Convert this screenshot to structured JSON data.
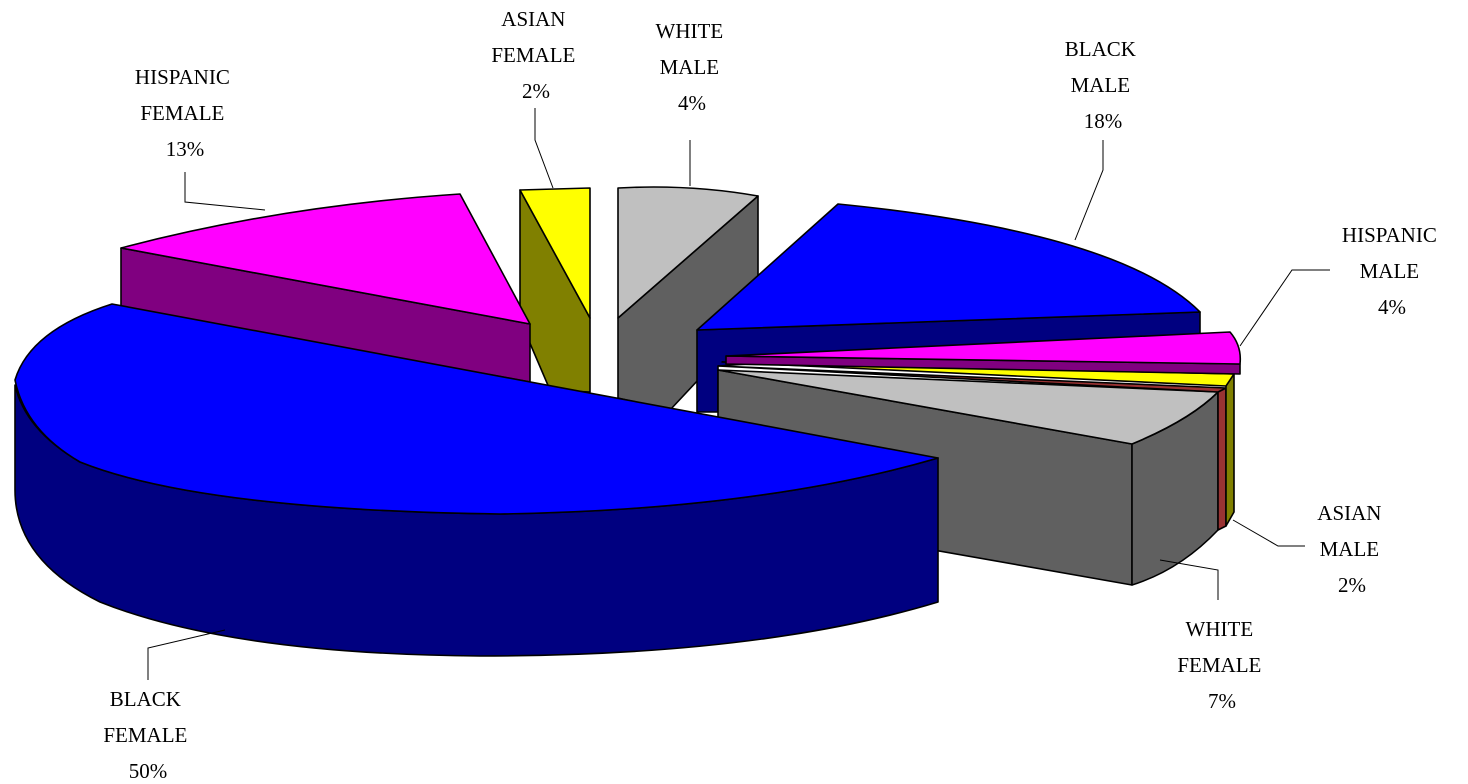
{
  "chart_data": {
    "type": "pie",
    "style": "3d-exploded",
    "title": "",
    "slices": [
      {
        "key": "black_female",
        "label_lines": [
          "BLACK",
          "FEMALE"
        ],
        "percent_text": "50%",
        "value": 50,
        "top_color": "#0000FF",
        "side_color": "#000080"
      },
      {
        "key": "hispanic_female",
        "label_lines": [
          "HISPANIC",
          "FEMALE"
        ],
        "percent_text": "13%",
        "value": 13,
        "top_color": "#FF00FF",
        "side_color": "#800080"
      },
      {
        "key": "asian_female",
        "label_lines": [
          "ASIAN",
          "FEMALE"
        ],
        "percent_text": "2%",
        "value": 2,
        "top_color": "#FFFF00",
        "side_color": "#808000"
      },
      {
        "key": "white_male",
        "label_lines": [
          "WHITE",
          "MALE"
        ],
        "percent_text": "4%",
        "value": 4,
        "top_color": "#C0C0C0",
        "side_color": "#606060"
      },
      {
        "key": "black_male",
        "label_lines": [
          "BLACK",
          "MALE"
        ],
        "percent_text": "18%",
        "value": 18,
        "top_color": "#0000FF",
        "side_color": "#000080"
      },
      {
        "key": "hispanic_male",
        "label_lines": [
          "HISPANIC",
          "MALE"
        ],
        "percent_text": "4%",
        "value": 4,
        "top_color": "#FF00FF",
        "side_color": "#800080"
      },
      {
        "key": "asian_male",
        "label_lines": [
          "ASIAN",
          "MALE"
        ],
        "percent_text": "2%",
        "value": 2,
        "top_color": "#FFFF00",
        "side_color": "#808000"
      },
      {
        "key": "white_female",
        "label_lines": [
          "WHITE",
          "FEMALE"
        ],
        "percent_text": "7%",
        "value": 7,
        "top_color": "#C0C0C0",
        "side_color": "#606060"
      }
    ]
  }
}
